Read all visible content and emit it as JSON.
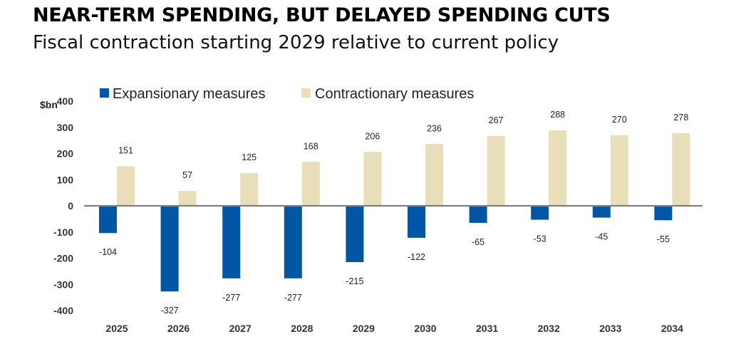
{
  "title": "NEAR-TERM SPENDING, BUT DELAYED SPENDING CUTS",
  "subtitle": "Fiscal contraction starting 2029 relative to current policy",
  "chart_data": {
    "type": "bar",
    "title": "NEAR-TERM SPENDING, BUT DELAYED SPENDING CUTS",
    "subtitle": "Fiscal contraction starting 2029 relative to current policy",
    "xlabel": "",
    "ylabel": "$bn",
    "ylim": [
      -400,
      400
    ],
    "yticks": [
      400,
      300,
      200,
      100,
      0,
      -100,
      -200,
      -300,
      -400
    ],
    "categories": [
      "2025",
      "2026",
      "2027",
      "2028",
      "2029",
      "2030",
      "2031",
      "2032",
      "2033",
      "2034"
    ],
    "series": [
      {
        "name": "Expansionary measures",
        "color": "#0055A4",
        "values": [
          -104,
          -327,
          -277,
          -277,
          -215,
          -122,
          -65,
          -53,
          -45,
          -55
        ]
      },
      {
        "name": "Contractionary measures",
        "color": "#E8DEB9",
        "values": [
          151,
          57,
          125,
          168,
          206,
          236,
          267,
          288,
          270,
          278
        ]
      }
    ],
    "legend": "top-left",
    "grid": false,
    "zero_line_color": "#808080"
  }
}
